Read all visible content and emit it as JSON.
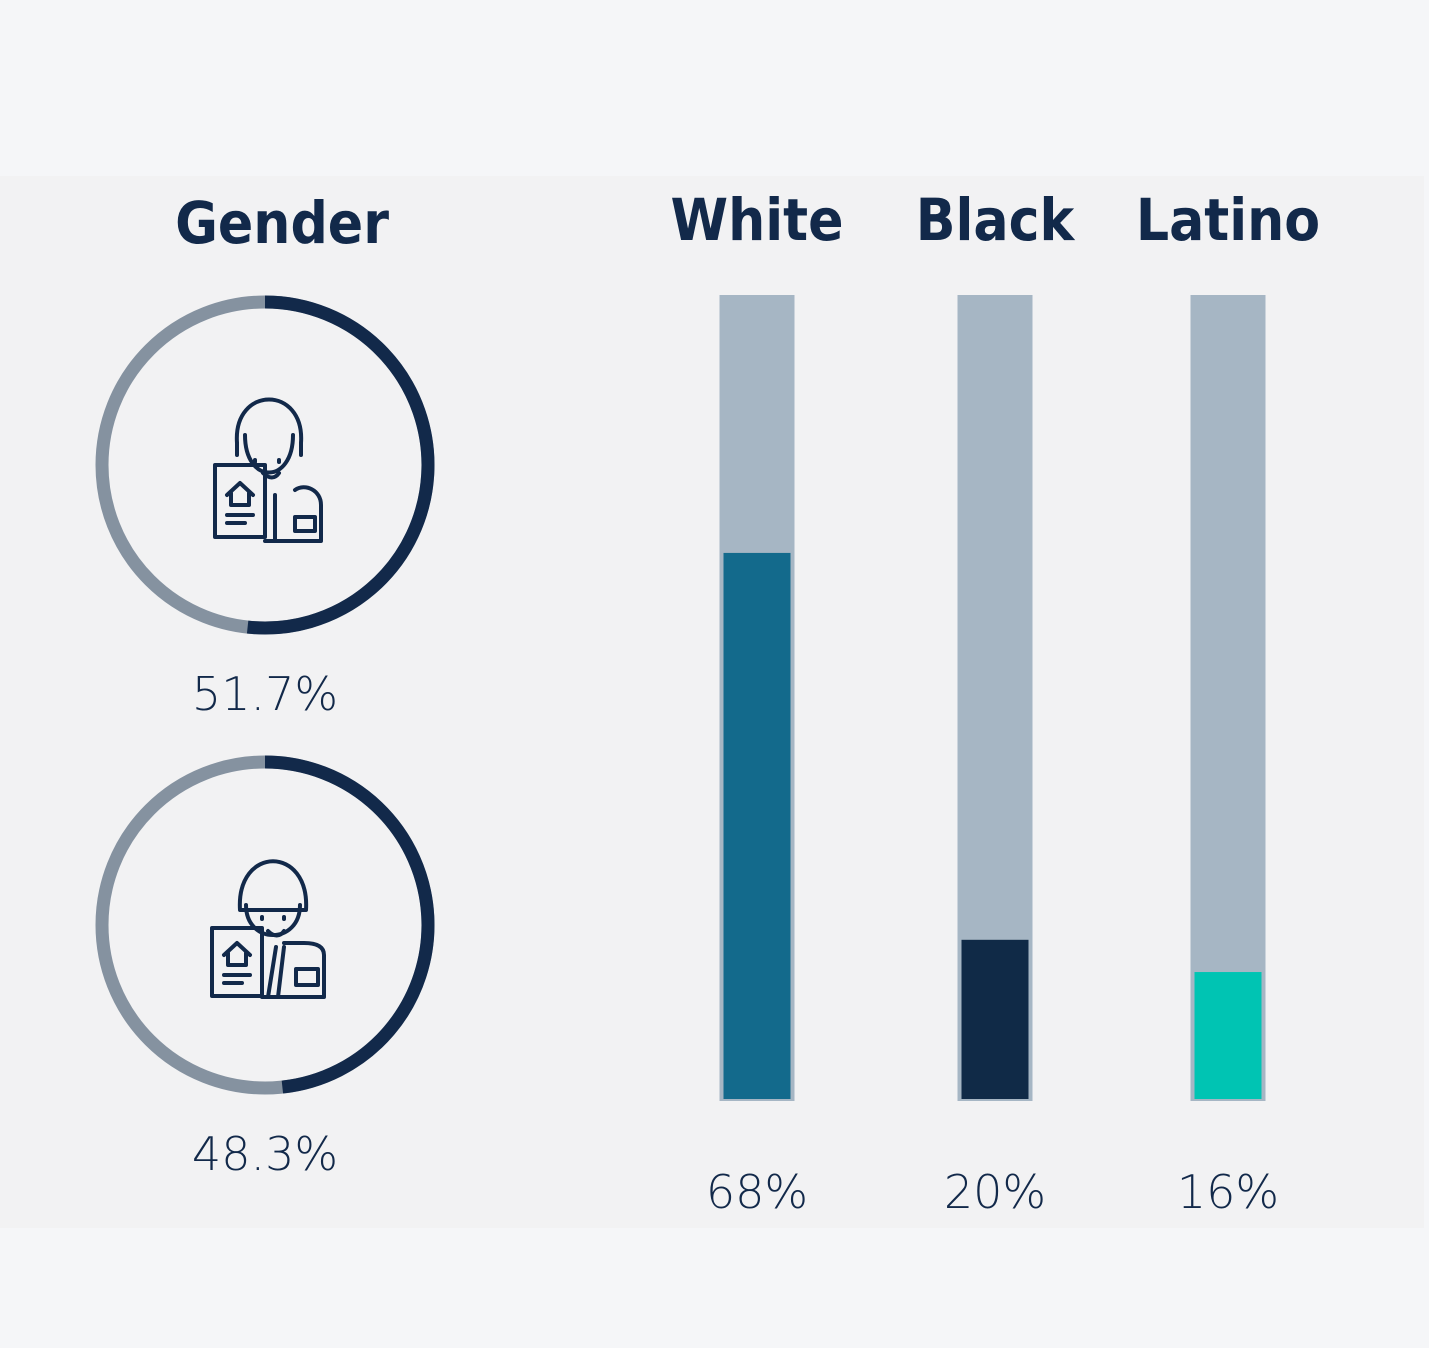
{
  "chart_data": [
    {
      "type": "ring",
      "title": "Gender",
      "values": [
        51.7,
        48.3
      ],
      "value_labels": [
        "51.7%",
        "48.3%"
      ],
      "color": "#12294a",
      "track_color": "#8592a0"
    },
    {
      "type": "bar",
      "categories": [
        "White",
        "Black",
        "Latino"
      ],
      "values": [
        68,
        20,
        16
      ],
      "value_labels": [
        "68%",
        "20%",
        "16%"
      ],
      "colors": [
        "#136a8c",
        "#102a47",
        "#00c4b3"
      ],
      "track_color": "#a6b6c4",
      "ylim": [
        0,
        100
      ]
    }
  ]
}
